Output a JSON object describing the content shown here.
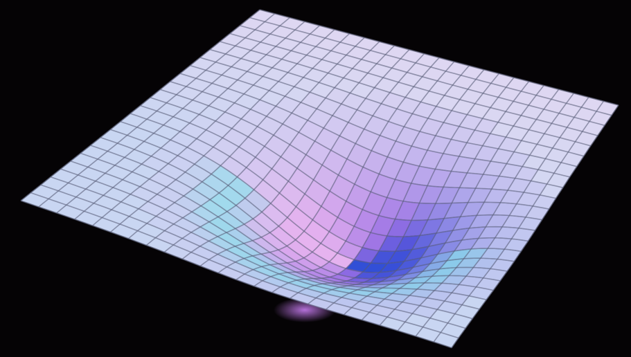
{
  "image": {
    "subject": "spacetime-curvature-grid",
    "background_color": "#050305",
    "surface": {
      "grid_columns": 24,
      "grid_rows": 24,
      "well_depth": 1,
      "colors": {
        "flat": "#c9d6f2",
        "highlight": "#f2d8f2",
        "well_pink": "#e6b3ef",
        "well_purple": "#7a55e0",
        "well_blue": "#2d4fd6",
        "rim_cyan": "#7fe6ea",
        "grid_line": "#5a5f7a"
      }
    }
  }
}
